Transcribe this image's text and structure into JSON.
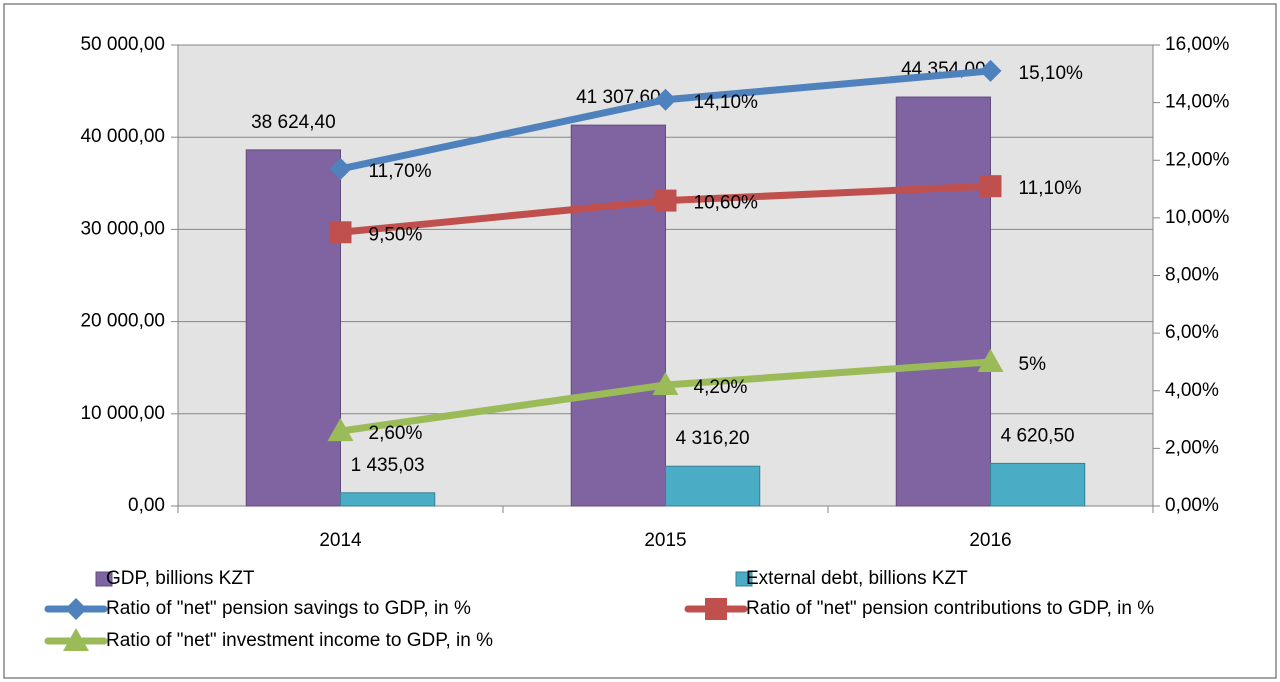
{
  "chart_data": {
    "type": "bar",
    "categories": [
      "2014",
      "2015",
      "2016"
    ],
    "ylim": [
      0,
      50000
    ],
    "yticks": [
      {
        "value": 0,
        "label": "0,00"
      },
      {
        "value": 10000,
        "label": "10 000,00"
      },
      {
        "value": 20000,
        "label": "20 000,00"
      },
      {
        "value": 30000,
        "label": "30 000,00"
      },
      {
        "value": 40000,
        "label": "40 000,00"
      },
      {
        "value": 50000,
        "label": "50 000,00"
      }
    ],
    "y2lim": [
      0,
      16
    ],
    "y2ticks": [
      {
        "value": 0,
        "label": "0,00%"
      },
      {
        "value": 2,
        "label": "2,00%"
      },
      {
        "value": 4,
        "label": "4,00%"
      },
      {
        "value": 6,
        "label": "6,00%"
      },
      {
        "value": 8,
        "label": "8,00%"
      },
      {
        "value": 10,
        "label": "10,00%"
      },
      {
        "value": 12,
        "label": "12,00%"
      },
      {
        "value": 14,
        "label": "14,00%"
      },
      {
        "value": 16,
        "label": "16,00%"
      }
    ],
    "grid": true,
    "legend": "bottom",
    "series": [
      {
        "name": "GDP, billions KZT",
        "type": "bar",
        "color": "#8064a2",
        "values": [
          38624.4,
          41307.6,
          44354.0
        ],
        "value_labels": [
          "38 624,40",
          "41 307,60",
          "44 354,00"
        ]
      },
      {
        "name": "External debt, billions KZT",
        "type": "bar",
        "color": "#4bacc6",
        "values": [
          1435.03,
          4316.2,
          4620.5
        ],
        "value_labels": [
          "1 435,03",
          "4 316,20",
          "4 620,50"
        ]
      },
      {
        "name": "Ratio of \"net\" pension savings to GDP, in %",
        "type": "line",
        "axis": "y2",
        "marker": "diamond",
        "color": "#4f81bd",
        "values": [
          11.7,
          14.1,
          15.1
        ],
        "value_labels": [
          "11,70%",
          "14,10%",
          "15,10%"
        ]
      },
      {
        "name": "Ratio of \"net\" pension contributions to GDP, in %",
        "type": "line",
        "axis": "y2",
        "marker": "square",
        "color": "#c0504d",
        "values": [
          9.5,
          10.6,
          11.1
        ],
        "value_labels": [
          "9,50%",
          "10,60%",
          "11,10%"
        ]
      },
      {
        "name": "Ratio of \"net\" investment income to GDP, in %",
        "type": "line",
        "axis": "y2",
        "marker": "triangle",
        "color": "#9bbb59",
        "values": [
          2.6,
          4.2,
          5
        ],
        "value_labels": [
          "2,60%",
          "4,20%",
          "5%"
        ]
      }
    ]
  }
}
